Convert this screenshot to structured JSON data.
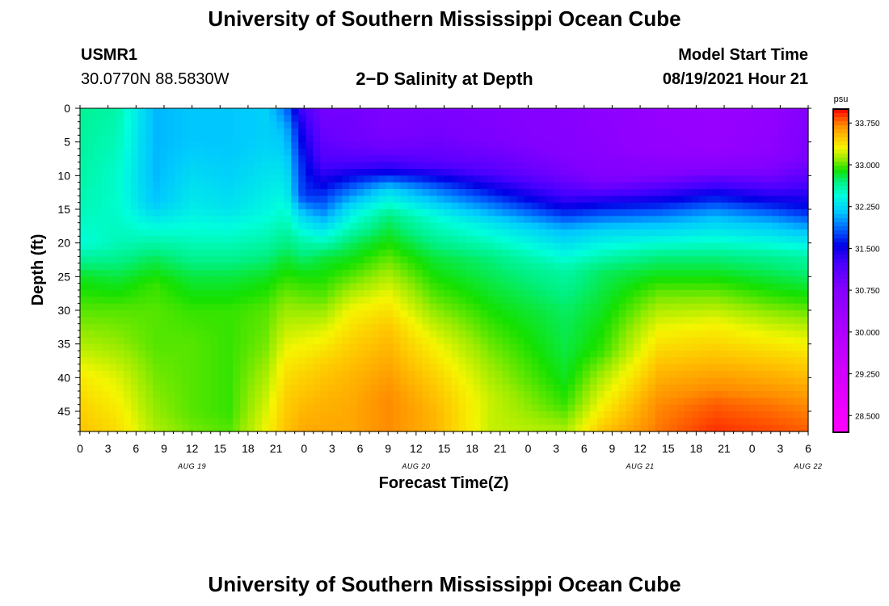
{
  "page": {
    "title_top": "University of Southern Mississippi Ocean Cube",
    "title_bottom": "University of Southern Mississippi Ocean Cube",
    "station_id": "USMR1",
    "station_coords": "30.0770N  88.5830W",
    "plot_title": "2−D Salinity at Depth",
    "model_start_label": "Model Start Time",
    "model_start_value": "08/19/2021 Hour 21"
  },
  "chart_data": {
    "type": "heatmap",
    "title": "2−D Salinity at Depth",
    "xlabel": "Forecast Time(Z)",
    "ylabel": "Depth (ft)",
    "x_tick_labels": [
      "0",
      "3",
      "6",
      "9",
      "12",
      "15",
      "18",
      "21",
      "0",
      "3",
      "6",
      "9",
      "12",
      "15",
      "18",
      "21",
      "0",
      "3",
      "6",
      "9",
      "12",
      "15",
      "18",
      "21",
      "0",
      "3",
      "6"
    ],
    "x_date_labels": [
      {
        "label": "AUG 19",
        "tick_index": 4
      },
      {
        "label": "AUG 20",
        "tick_index": 12
      },
      {
        "label": "AUG 21",
        "tick_index": 20
      },
      {
        "label": "AUG 22",
        "tick_index": 26
      }
    ],
    "y_ticks": [
      0,
      5,
      10,
      15,
      20,
      25,
      30,
      35,
      40,
      45
    ],
    "ylim": [
      0,
      48
    ],
    "y_inverted": true,
    "forecast_hours": [
      0,
      78
    ],
    "colorbar": {
      "unit": "psu",
      "labels": [
        "33.750",
        "33.000",
        "32.250",
        "31.500",
        "30.750",
        "30.000",
        "29.250",
        "28.500"
      ],
      "range": [
        28.2,
        34.0
      ]
    },
    "salinity_profiles": {
      "columns": [
        {
          "time_hour": 0,
          "depths": [
            0,
            10,
            15,
            20,
            25,
            30,
            35,
            40,
            45,
            48
          ],
          "values": [
            32.65,
            32.6,
            32.55,
            32.45,
            32.85,
            33.0,
            33.15,
            33.35,
            33.45,
            33.5
          ]
        },
        {
          "time_hour": 4,
          "depths": [
            0,
            10,
            15,
            20,
            25,
            30,
            35,
            40,
            45,
            48
          ],
          "values": [
            32.6,
            32.5,
            32.5,
            32.55,
            32.8,
            33.0,
            33.1,
            33.25,
            33.35,
            33.4
          ]
        },
        {
          "time_hour": 8,
          "depths": [
            0,
            10,
            14,
            18,
            22,
            26,
            30,
            35,
            40,
            45,
            48
          ],
          "values": [
            32.1,
            32.1,
            32.15,
            32.45,
            32.75,
            32.95,
            33.0,
            33.0,
            33.05,
            33.1,
            33.15
          ]
        },
        {
          "time_hour": 12,
          "depths": [
            0,
            5,
            10,
            15,
            20,
            25,
            30,
            35,
            40,
            45,
            48
          ],
          "values": [
            32.15,
            32.15,
            32.25,
            32.35,
            32.55,
            32.8,
            32.95,
            33.0,
            33.0,
            33.0,
            33.05
          ]
        },
        {
          "time_hour": 16,
          "depths": [
            0,
            5,
            10,
            15,
            20,
            25,
            30,
            35,
            40,
            45,
            48
          ],
          "values": [
            32.15,
            32.15,
            32.2,
            32.3,
            32.55,
            32.8,
            32.95,
            32.95,
            32.95,
            32.95,
            33.0
          ]
        },
        {
          "time_hour": 20,
          "depths": [
            0,
            5,
            10,
            15,
            20,
            25,
            30,
            35,
            40,
            45,
            48
          ],
          "values": [
            32.2,
            32.2,
            32.3,
            32.4,
            32.6,
            32.85,
            33.0,
            33.05,
            33.15,
            33.25,
            33.3
          ]
        },
        {
          "time_hour": 22,
          "depths": [
            0,
            3,
            8,
            13,
            18,
            23,
            28,
            33,
            38,
            43,
            48
          ],
          "values": [
            31.9,
            32.1,
            32.25,
            32.4,
            32.6,
            32.85,
            33.05,
            33.2,
            33.35,
            33.45,
            33.5
          ]
        },
        {
          "time_hour": 24,
          "depths": [
            0,
            3,
            8,
            13,
            16,
            20,
            25,
            30,
            35,
            40,
            45,
            48
          ],
          "values": [
            31.2,
            31.4,
            31.6,
            31.7,
            32.2,
            32.6,
            32.9,
            33.1,
            33.3,
            33.45,
            33.55,
            33.6
          ]
        },
        {
          "time_hour": 26,
          "depths": [
            0,
            4,
            8,
            12,
            15,
            18,
            22,
            28,
            33,
            38,
            43,
            48
          ],
          "values": [
            30.9,
            31.0,
            31.2,
            31.6,
            31.9,
            32.3,
            32.8,
            33.0,
            33.25,
            33.45,
            33.55,
            33.6
          ]
        },
        {
          "time_hour": 29,
          "depths": [
            0,
            5,
            8,
            11,
            15,
            20,
            25,
            30,
            35,
            40,
            45,
            48
          ],
          "values": [
            30.9,
            30.95,
            31.2,
            31.7,
            32.3,
            32.75,
            33.0,
            33.3,
            33.45,
            33.55,
            33.6,
            33.6
          ]
        },
        {
          "time_hour": 33,
          "depths": [
            0,
            3,
            6,
            9,
            12,
            16,
            22,
            28,
            33,
            38,
            43,
            48
          ],
          "values": [
            30.85,
            30.85,
            30.95,
            31.4,
            32.2,
            32.7,
            33.0,
            33.3,
            33.5,
            33.6,
            33.7,
            33.7
          ]
        },
        {
          "time_hour": 38,
          "depths": [
            0,
            4,
            8,
            12,
            16,
            22,
            28,
            35,
            40,
            45,
            48
          ],
          "values": [
            30.85,
            30.9,
            31.1,
            31.9,
            32.45,
            32.8,
            33.0,
            33.3,
            33.45,
            33.55,
            33.55
          ]
        },
        {
          "time_hour": 44,
          "depths": [
            0,
            5,
            9,
            13,
            17,
            22,
            28,
            34,
            38,
            43,
            48
          ],
          "values": [
            30.8,
            30.85,
            31.1,
            31.7,
            32.3,
            32.7,
            32.85,
            33.0,
            33.1,
            33.2,
            33.2
          ]
        },
        {
          "time_hour": 52,
          "depths": [
            0,
            6,
            10,
            14,
            18,
            24,
            30,
            36,
            40,
            44,
            48
          ],
          "values": [
            30.7,
            30.75,
            30.9,
            31.4,
            32.1,
            32.6,
            32.75,
            32.8,
            32.85,
            32.95,
            33.15
          ]
        },
        {
          "time_hour": 56,
          "depths": [
            0,
            6,
            11,
            14,
            18,
            24,
            30,
            36,
            40,
            45,
            48
          ],
          "values": [
            30.6,
            30.65,
            30.85,
            31.5,
            32.2,
            32.75,
            32.85,
            32.95,
            33.15,
            33.35,
            33.5
          ]
        },
        {
          "time_hour": 62,
          "depths": [
            0,
            6,
            10,
            13,
            17,
            22,
            27,
            33,
            38,
            44,
            48
          ],
          "values": [
            30.45,
            30.5,
            30.8,
            31.4,
            32.1,
            32.7,
            33.0,
            33.3,
            33.5,
            33.7,
            33.75
          ]
        },
        {
          "time_hour": 68,
          "depths": [
            0,
            6,
            9,
            12,
            16,
            22,
            27,
            32,
            38,
            44,
            48
          ],
          "values": [
            30.4,
            30.45,
            30.75,
            31.4,
            32.1,
            32.7,
            33.0,
            33.3,
            33.55,
            33.8,
            33.9
          ]
        },
        {
          "time_hour": 74,
          "depths": [
            0,
            6,
            10,
            13,
            17,
            22,
            28,
            33,
            38,
            44,
            48
          ],
          "values": [
            30.5,
            30.6,
            30.9,
            31.4,
            32.1,
            32.65,
            32.95,
            33.25,
            33.5,
            33.75,
            33.85
          ]
        },
        {
          "time_hour": 78,
          "depths": [
            0,
            8,
            12,
            15,
            18,
            22,
            28,
            33,
            38,
            44,
            48
          ],
          "values": [
            30.8,
            30.9,
            31.3,
            31.6,
            32.1,
            32.6,
            32.9,
            33.2,
            33.45,
            33.7,
            33.8
          ]
        }
      ]
    }
  }
}
